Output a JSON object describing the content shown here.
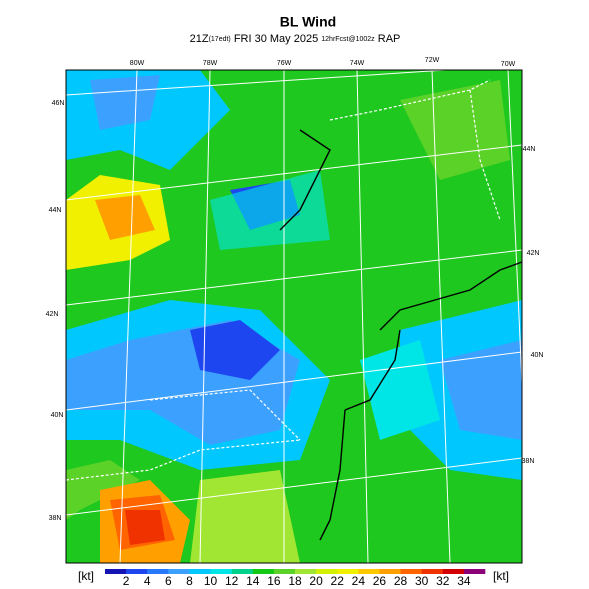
{
  "header": {
    "title": "BL Wind",
    "subtitle": {
      "time": "21Z",
      "local": "(17edt)",
      "date": "FRI 30 May 2025",
      "forecast": "12hrFcst@1002z",
      "model": "RAP"
    }
  },
  "map": {
    "lon_labels": [
      "80W",
      "78W",
      "76W",
      "74W",
      "72W",
      "70W"
    ],
    "lat_labels_left": [
      "46N",
      "44N",
      "42N",
      "40N",
      "38N"
    ],
    "lat_labels_right": [
      "44N",
      "42N",
      "40N",
      "38N"
    ]
  },
  "colorbar": {
    "unit": "[kt]",
    "labels": [
      "2",
      "4",
      "6",
      "8",
      "10",
      "12",
      "14",
      "16",
      "18",
      "20",
      "22",
      "24",
      "26",
      "28",
      "30",
      "32",
      "34"
    ],
    "colors": [
      "#1414b4",
      "#1e46f0",
      "#2878ff",
      "#3ca0ff",
      "#00c8ff",
      "#00e6e6",
      "#00d28c",
      "#14c814",
      "#5ad228",
      "#a0e632",
      "#d2f000",
      "#f0f000",
      "#ffc800",
      "#ffa000",
      "#ff6400",
      "#f03200",
      "#d20000",
      "#8c0078"
    ]
  }
}
